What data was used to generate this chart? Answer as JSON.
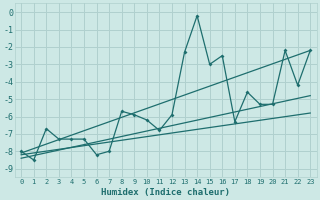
{
  "xlabel": "Humidex (Indice chaleur)",
  "bg_color": "#cde8e5",
  "grid_color": "#b0d0ce",
  "line_color": "#1e6e6e",
  "xlim": [
    -0.5,
    23.5
  ],
  "ylim": [
    -9.5,
    0.5
  ],
  "xtick_labels": [
    "0",
    "1",
    "2",
    "3",
    "4",
    "5",
    "6",
    "7",
    "8",
    "9",
    "10",
    "11",
    "12",
    "13",
    "14",
    "15",
    "16",
    "17",
    "18",
    "19",
    "20",
    "21",
    "22",
    "23"
  ],
  "xtick_vals": [
    0,
    1,
    2,
    3,
    4,
    5,
    6,
    7,
    8,
    9,
    10,
    11,
    12,
    13,
    14,
    15,
    16,
    17,
    18,
    19,
    20,
    21,
    22,
    23
  ],
  "ytick_vals": [
    0,
    -1,
    -2,
    -3,
    -4,
    -5,
    -6,
    -7,
    -8,
    -9
  ],
  "line1_x": [
    0,
    1,
    2,
    3,
    4,
    5,
    6,
    7,
    8,
    9,
    10,
    11,
    12,
    13,
    14,
    15,
    16,
    17,
    18,
    19,
    20,
    21,
    22,
    23
  ],
  "line1_y": [
    -8.0,
    -8.5,
    -6.7,
    -7.3,
    -7.3,
    -7.3,
    -8.2,
    -8.0,
    -5.7,
    -5.9,
    -6.2,
    -6.8,
    -5.9,
    -2.3,
    -0.2,
    -3.0,
    -2.5,
    -6.3,
    -4.6,
    -5.3,
    -5.3,
    -2.2,
    -4.2,
    -2.2
  ],
  "trend1_x": [
    0,
    23
  ],
  "trend1_y": [
    -8.1,
    -2.2
  ],
  "trend2_x": [
    0,
    23
  ],
  "trend2_y": [
    -8.4,
    -4.8
  ],
  "trend3_x": [
    0,
    23
  ],
  "trend3_y": [
    -8.2,
    -5.8
  ]
}
